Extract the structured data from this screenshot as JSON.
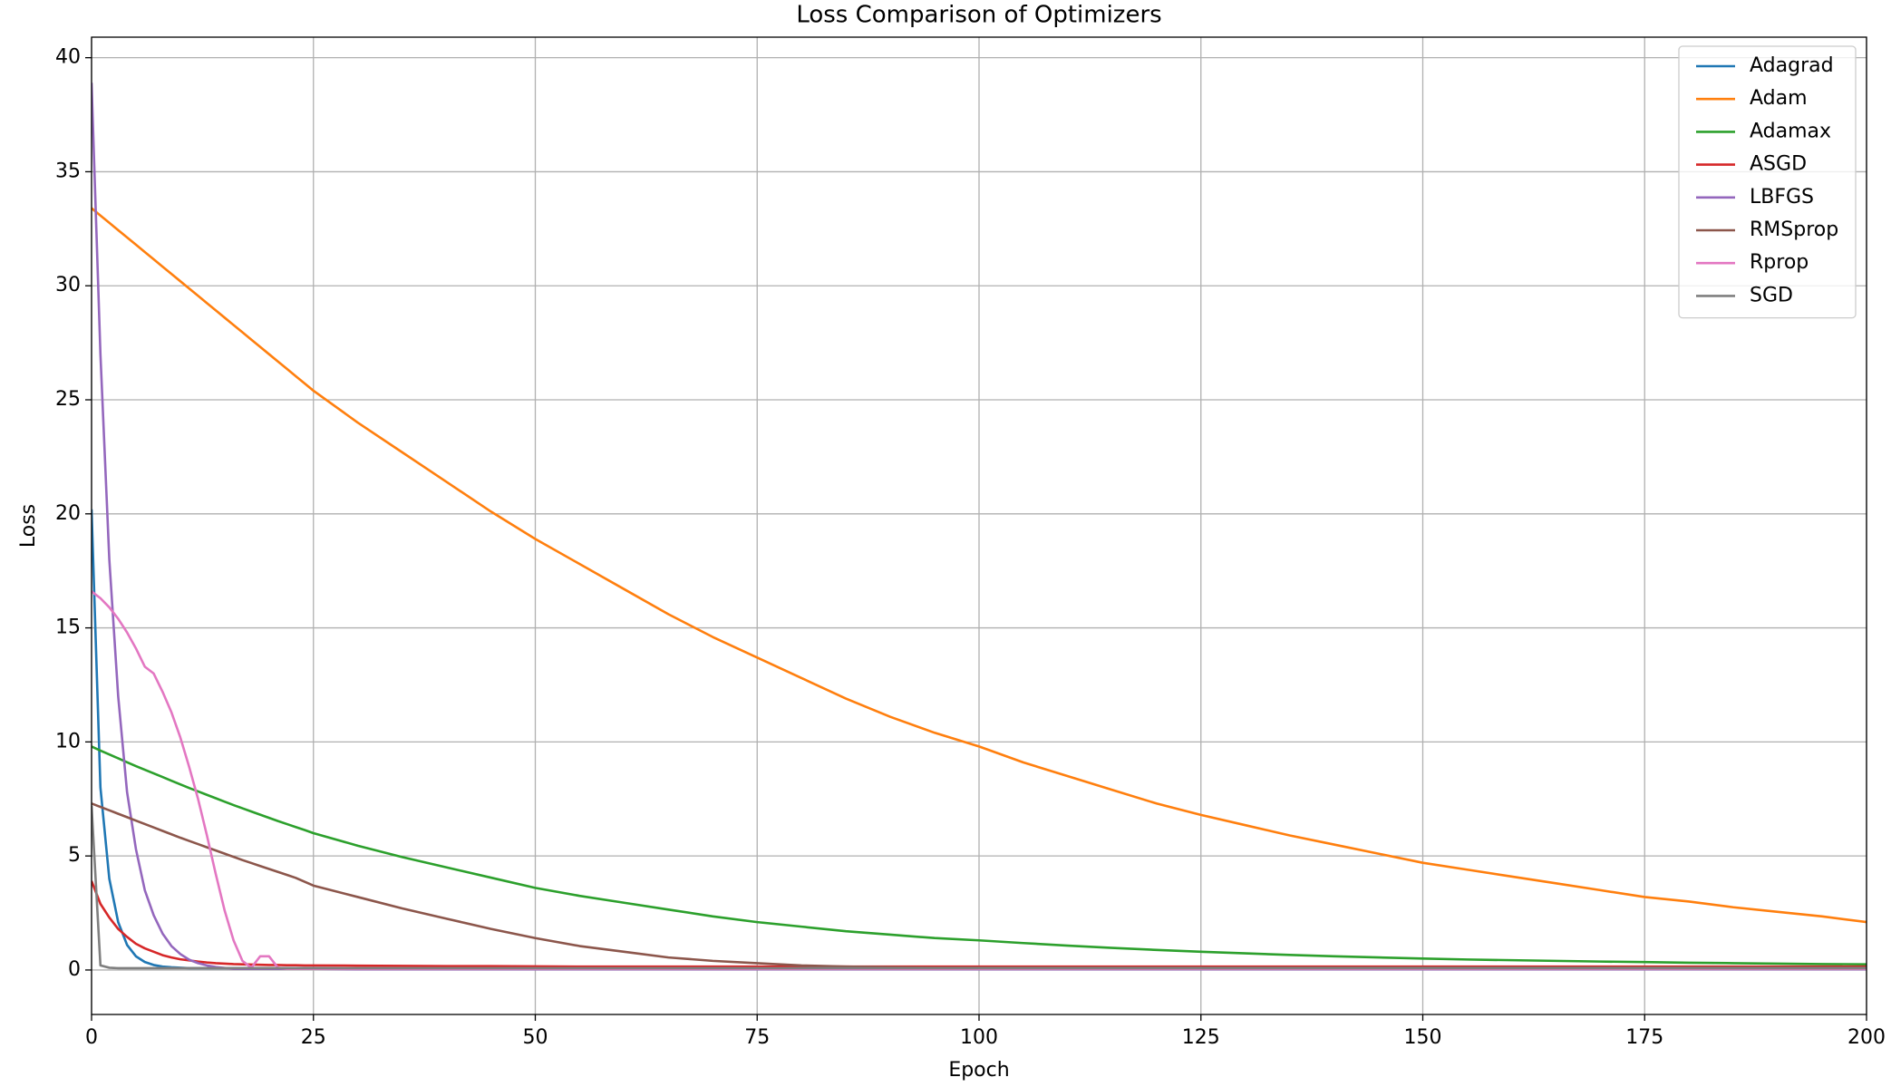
{
  "chart_data": {
    "type": "line",
    "title": "Loss Comparison of Optimizers",
    "x_label": "Epoch",
    "y_label": "Loss",
    "x": [
      0,
      1,
      2,
      3,
      4,
      5,
      6,
      7,
      8,
      9,
      10,
      11,
      12,
      13,
      14,
      15,
      16,
      17,
      18,
      19,
      20,
      21,
      22,
      23,
      24,
      25,
      30,
      35,
      40,
      45,
      50,
      55,
      60,
      65,
      70,
      75,
      80,
      85,
      90,
      95,
      100,
      105,
      110,
      115,
      120,
      125,
      130,
      135,
      140,
      145,
      150,
      155,
      160,
      165,
      170,
      175,
      180,
      185,
      190,
      195,
      200
    ],
    "xlim": [
      0,
      200
    ],
    "xticks": [
      0,
      25,
      50,
      75,
      100,
      125,
      150,
      175,
      200
    ],
    "ylim": [
      -1.95,
      40.9
    ],
    "yticks": [
      0,
      5,
      10,
      15,
      20,
      25,
      30,
      35,
      40
    ],
    "grid": true,
    "legend": "upper right",
    "series": [
      {
        "name": "Adagrad",
        "color": "#1f77b4",
        "values": [
          20.2,
          8.0,
          4.0,
          2.1,
          1.1,
          0.6,
          0.35,
          0.22,
          0.15,
          0.12,
          0.1,
          0.08,
          0.08,
          0.08,
          0.08,
          0.08,
          0.08,
          0.08,
          0.08,
          0.08,
          0.08,
          0.08,
          0.08,
          0.08,
          0.08,
          0.08,
          0.06,
          0.06,
          0.06,
          0.06,
          0.06,
          0.06,
          0.06,
          0.06,
          0.06,
          0.06,
          0.06,
          0.06,
          0.06,
          0.06,
          0.06,
          0.06,
          0.06,
          0.06,
          0.06,
          0.06,
          0.06,
          0.06,
          0.06,
          0.06,
          0.06,
          0.06,
          0.06,
          0.06,
          0.06,
          0.06,
          0.06,
          0.06,
          0.06,
          0.06,
          0.06
        ]
      },
      {
        "name": "Adam",
        "color": "#ff7f0e",
        "values": [
          33.4,
          33.08,
          32.76,
          32.44,
          32.12,
          31.8,
          31.48,
          31.16,
          30.84,
          30.52,
          30.2,
          29.88,
          29.56,
          29.24,
          28.92,
          28.6,
          28.28,
          27.96,
          27.64,
          27.32,
          27.0,
          26.68,
          26.36,
          26.04,
          25.72,
          25.4,
          24.0,
          22.7,
          21.4,
          20.1,
          18.9,
          17.8,
          16.7,
          15.6,
          14.6,
          13.7,
          12.8,
          11.9,
          11.1,
          10.4,
          9.8,
          9.1,
          8.5,
          7.9,
          7.3,
          6.8,
          6.35,
          5.9,
          5.5,
          5.1,
          4.7,
          4.4,
          4.1,
          3.8,
          3.5,
          3.2,
          3.0,
          2.75,
          2.55,
          2.35,
          2.1
        ]
      },
      {
        "name": "Adamax",
        "color": "#2ca02c",
        "values": [
          9.8,
          9.62,
          9.45,
          9.28,
          9.11,
          8.94,
          8.78,
          8.62,
          8.46,
          8.3,
          8.14,
          7.98,
          7.83,
          7.68,
          7.53,
          7.38,
          7.23,
          7.09,
          6.95,
          6.81,
          6.67,
          6.53,
          6.4,
          6.27,
          6.14,
          6.0,
          5.45,
          4.95,
          4.5,
          4.05,
          3.6,
          3.25,
          2.95,
          2.65,
          2.35,
          2.1,
          1.9,
          1.7,
          1.55,
          1.4,
          1.3,
          1.18,
          1.07,
          0.97,
          0.88,
          0.8,
          0.73,
          0.66,
          0.6,
          0.55,
          0.5,
          0.46,
          0.43,
          0.4,
          0.37,
          0.35,
          0.32,
          0.3,
          0.28,
          0.26,
          0.25
        ]
      },
      {
        "name": "ASGD",
        "color": "#d62728",
        "values": [
          3.9,
          2.9,
          2.3,
          1.8,
          1.45,
          1.15,
          0.95,
          0.8,
          0.65,
          0.55,
          0.47,
          0.42,
          0.37,
          0.33,
          0.3,
          0.28,
          0.26,
          0.25,
          0.24,
          0.23,
          0.22,
          0.22,
          0.21,
          0.21,
          0.2,
          0.2,
          0.19,
          0.18,
          0.17,
          0.17,
          0.16,
          0.15,
          0.15,
          0.15,
          0.15,
          0.15,
          0.15,
          0.15,
          0.15,
          0.15,
          0.15,
          0.15,
          0.15,
          0.15,
          0.15,
          0.15,
          0.15,
          0.15,
          0.15,
          0.15,
          0.15,
          0.15,
          0.15,
          0.15,
          0.15,
          0.15,
          0.15,
          0.15,
          0.15,
          0.15,
          0.15
        ]
      },
      {
        "name": "LBFGS",
        "color": "#9467bd",
        "values": [
          38.9,
          27.0,
          18.0,
          12.0,
          7.8,
          5.3,
          3.5,
          2.4,
          1.6,
          1.05,
          0.7,
          0.45,
          0.3,
          0.2,
          0.13,
          0.09,
          0.05,
          0.05,
          0.05,
          0.05,
          0.05,
          0.05,
          0.05,
          0.05,
          0.05,
          0.05,
          0.03,
          0.03,
          0.03,
          0.03,
          0.03,
          0.03,
          0.03,
          0.03,
          0.03,
          0.03,
          0.03,
          0.03,
          0.03,
          0.03,
          0.03,
          0.03,
          0.03,
          0.03,
          0.03,
          0.03,
          0.03,
          0.03,
          0.03,
          0.03,
          0.03,
          0.03,
          0.03,
          0.03,
          0.03,
          0.03,
          0.03,
          0.03,
          0.03,
          0.03,
          0.03
        ]
      },
      {
        "name": "RMSprop",
        "color": "#8c564b",
        "values": [
          7.3,
          7.15,
          7.0,
          6.85,
          6.7,
          6.55,
          6.4,
          6.25,
          6.1,
          5.95,
          5.8,
          5.66,
          5.52,
          5.38,
          5.24,
          5.1,
          4.96,
          4.82,
          4.69,
          4.56,
          4.43,
          4.3,
          4.17,
          4.04,
          3.87,
          3.7,
          3.2,
          2.7,
          2.25,
          1.8,
          1.4,
          1.05,
          0.8,
          0.55,
          0.4,
          0.3,
          0.2,
          0.15,
          0.12,
          0.1,
          0.1,
          0.1,
          0.1,
          0.1,
          0.1,
          0.1,
          0.1,
          0.1,
          0.1,
          0.1,
          0.1,
          0.1,
          0.1,
          0.1,
          0.1,
          0.1,
          0.1,
          0.1,
          0.1,
          0.1,
          0.1
        ]
      },
      {
        "name": "Rprop",
        "color": "#e377c2",
        "values": [
          16.6,
          16.3,
          15.9,
          15.4,
          14.8,
          14.1,
          13.3,
          13.0,
          12.2,
          11.3,
          10.2,
          8.9,
          7.5,
          5.9,
          4.2,
          2.6,
          1.3,
          0.4,
          0.1,
          0.6,
          0.6,
          0.1,
          0.05,
          0.05,
          0.05,
          0.05,
          0.05,
          0.05,
          0.05,
          0.05,
          0.05,
          0.05,
          0.05,
          0.05,
          0.05,
          0.05,
          0.05,
          0.05,
          0.05,
          0.05,
          0.05,
          0.05,
          0.05,
          0.05,
          0.05,
          0.05,
          0.05,
          0.05,
          0.05,
          0.05,
          0.05,
          0.05,
          0.05,
          0.05,
          0.05,
          0.05,
          0.05,
          0.05,
          0.05,
          0.05,
          0.05
        ]
      },
      {
        "name": "SGD",
        "color": "#7f7f7f",
        "values": [
          7.2,
          0.2,
          0.1,
          0.08,
          0.08,
          0.08,
          0.08,
          0.08,
          0.08,
          0.08,
          0.08,
          0.08,
          0.08,
          0.08,
          0.08,
          0.08,
          0.08,
          0.08,
          0.08,
          0.08,
          0.08,
          0.08,
          0.08,
          0.08,
          0.08,
          0.08,
          0.08,
          0.08,
          0.08,
          0.08,
          0.08,
          0.08,
          0.08,
          0.08,
          0.08,
          0.08,
          0.08,
          0.08,
          0.08,
          0.08,
          0.08,
          0.08,
          0.08,
          0.08,
          0.08,
          0.08,
          0.08,
          0.08,
          0.08,
          0.08,
          0.08,
          0.08,
          0.08,
          0.08,
          0.08,
          0.08,
          0.08,
          0.08,
          0.08,
          0.08,
          0.08
        ]
      }
    ]
  }
}
